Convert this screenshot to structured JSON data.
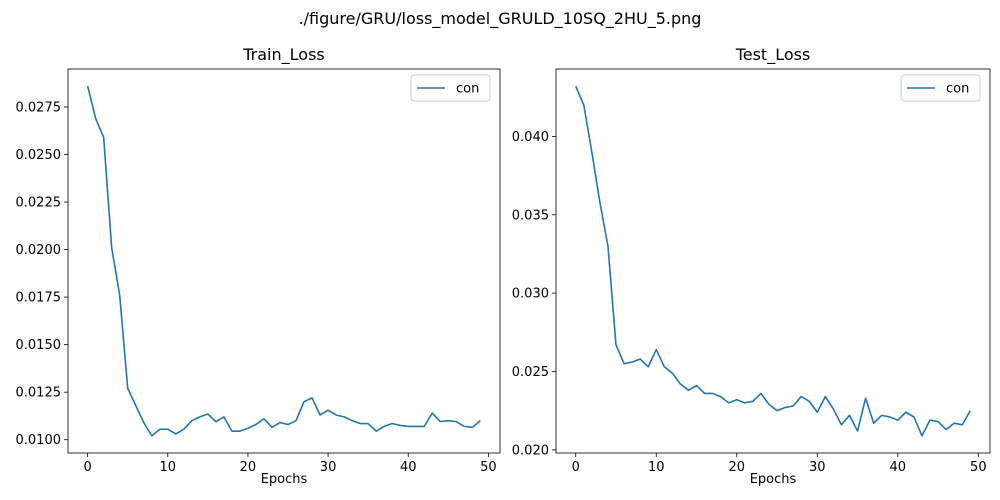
{
  "suptitle": "./figure/GRU/loss_model_GRULD_10SQ_2HU_5.png",
  "chart_data": [
    {
      "type": "line",
      "title": "Train_Loss",
      "xlabel": "Epochs",
      "ylabel": "",
      "xlim": [
        -2.45,
        51.45
      ],
      "ylim": [
        0.0093,
        0.0295
      ],
      "xticks": [
        0,
        10,
        20,
        30,
        40,
        50
      ],
      "yticks": [
        0.01,
        0.0125,
        0.015,
        0.0175,
        0.02,
        0.0225,
        0.025,
        0.0275
      ],
      "ytick_labels": [
        "0.0100",
        "0.0125",
        "0.0150",
        "0.0175",
        "0.0200",
        "0.0225",
        "0.0250",
        "0.0275"
      ],
      "legend": "top-right",
      "grid": false,
      "series": [
        {
          "name": "con",
          "color": "#1f77b4",
          "x": [
            0,
            1,
            2,
            3,
            4,
            5,
            6,
            7,
            8,
            9,
            10,
            11,
            12,
            13,
            14,
            15,
            16,
            17,
            18,
            19,
            20,
            21,
            22,
            23,
            24,
            25,
            26,
            27,
            28,
            29,
            30,
            31,
            32,
            33,
            34,
            35,
            36,
            37,
            38,
            39,
            40,
            41,
            42,
            43,
            44,
            45,
            46,
            47,
            48,
            49
          ],
          "values": [
            0.0286,
            0.0269,
            0.0259,
            0.0201,
            0.0176,
            0.0127,
            0.0118,
            0.0109,
            0.0102,
            0.01055,
            0.01055,
            0.0103,
            0.01055,
            0.011,
            0.0112,
            0.01135,
            0.01095,
            0.0112,
            0.01045,
            0.01045,
            0.0106,
            0.0108,
            0.0111,
            0.01065,
            0.0109,
            0.0108,
            0.011,
            0.012,
            0.0122,
            0.0113,
            0.01155,
            0.0113,
            0.0112,
            0.011,
            0.01085,
            0.01085,
            0.01045,
            0.0107,
            0.01085,
            0.01075,
            0.0107,
            0.0107,
            0.0107,
            0.0114,
            0.01095,
            0.011,
            0.01095,
            0.0107,
            0.01065,
            0.011
          ]
        }
      ]
    },
    {
      "type": "line",
      "title": "Test_Loss",
      "xlabel": "Epochs",
      "ylabel": "",
      "xlim": [
        -2.45,
        51.45
      ],
      "ylim": [
        0.0198,
        0.0443
      ],
      "xticks": [
        0,
        10,
        20,
        30,
        40,
        50
      ],
      "yticks": [
        0.02,
        0.025,
        0.03,
        0.035,
        0.04
      ],
      "ytick_labels": [
        "0.020",
        "0.025",
        "0.030",
        "0.035",
        "0.040"
      ],
      "legend": "top-right",
      "grid": false,
      "series": [
        {
          "name": "con",
          "color": "#1f77b4",
          "x": [
            0,
            1,
            2,
            3,
            4,
            5,
            6,
            7,
            8,
            9,
            10,
            11,
            12,
            13,
            14,
            15,
            16,
            17,
            18,
            19,
            20,
            21,
            22,
            23,
            24,
            25,
            26,
            27,
            28,
            29,
            30,
            31,
            32,
            33,
            34,
            35,
            36,
            37,
            38,
            39,
            40,
            41,
            42,
            43,
            44,
            45,
            46,
            47,
            48,
            49
          ],
          "values": [
            0.0432,
            0.042,
            0.039,
            0.0358,
            0.033,
            0.0267,
            0.0255,
            0.0256,
            0.0258,
            0.0253,
            0.0264,
            0.0253,
            0.0249,
            0.0242,
            0.0238,
            0.0241,
            0.0236,
            0.0236,
            0.0234,
            0.023,
            0.0232,
            0.023,
            0.0231,
            0.0236,
            0.0229,
            0.0225,
            0.0227,
            0.0228,
            0.0234,
            0.0231,
            0.0224,
            0.0234,
            0.0226,
            0.0216,
            0.0222,
            0.0212,
            0.0233,
            0.0217,
            0.0222,
            0.0221,
            0.0219,
            0.0224,
            0.0221,
            0.0209,
            0.0219,
            0.0218,
            0.0213,
            0.0217,
            0.0216,
            0.0225
          ]
        }
      ]
    }
  ]
}
